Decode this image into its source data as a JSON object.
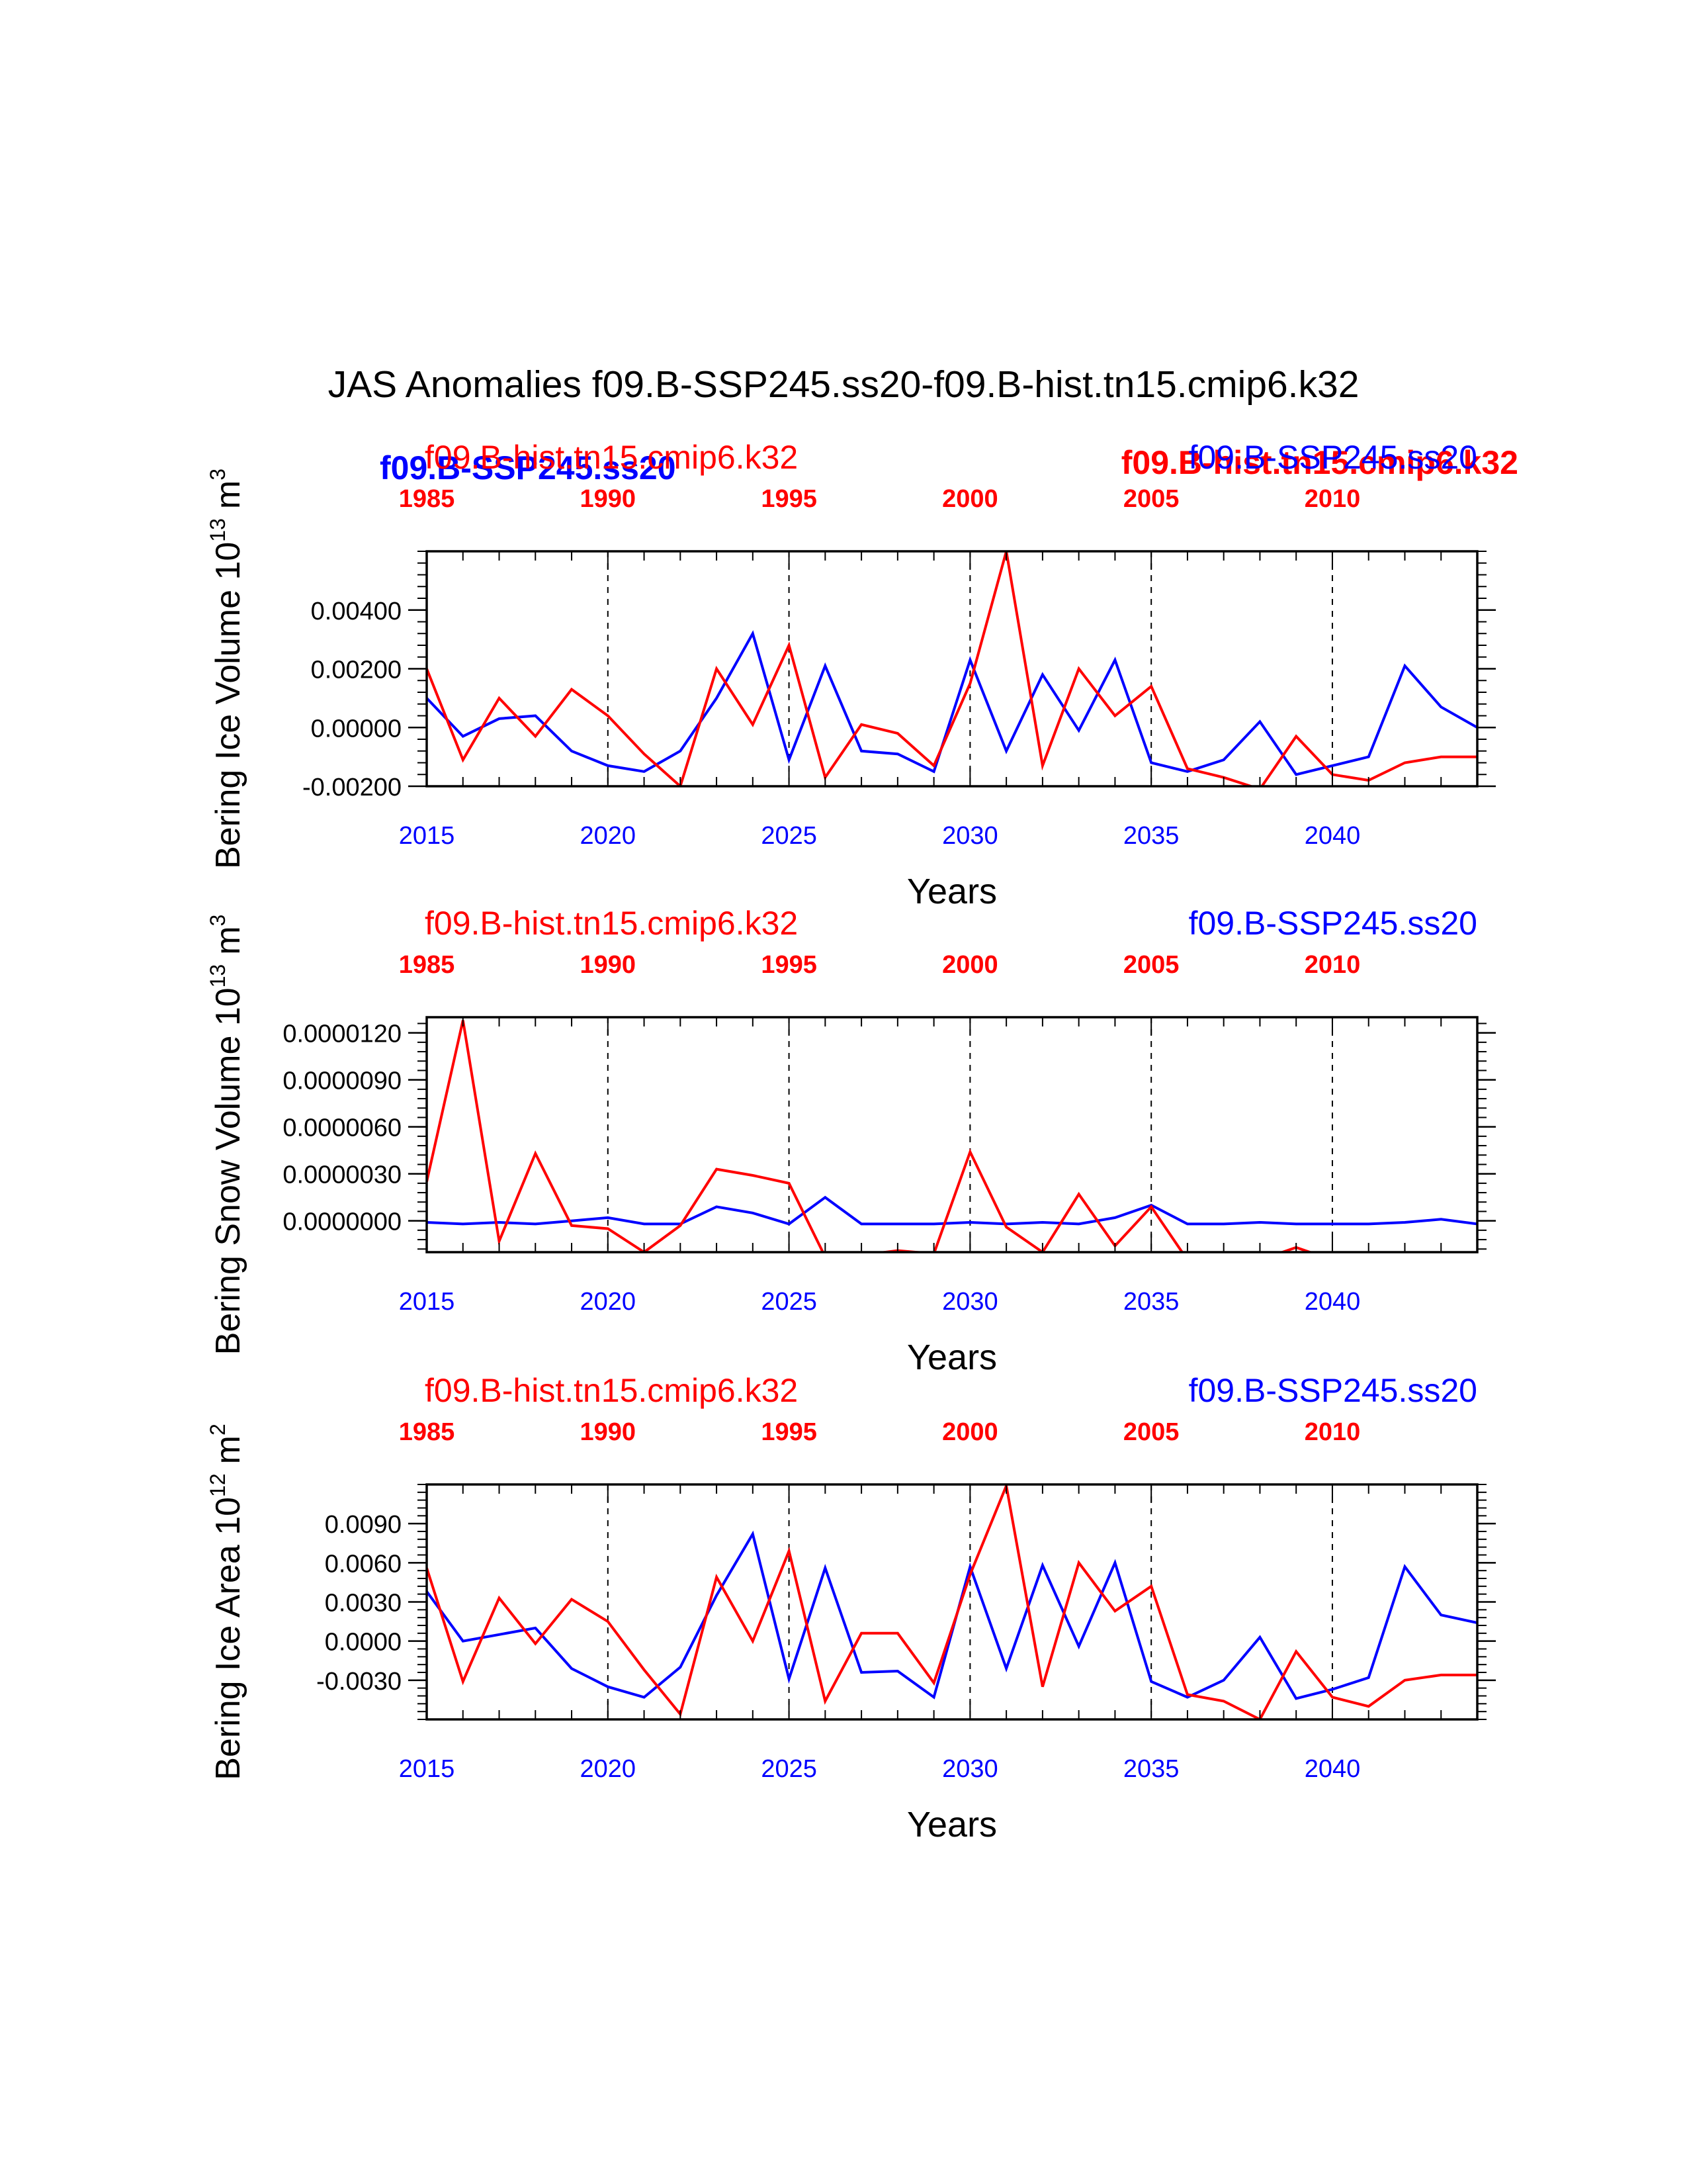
{
  "title": "JAS Anomalies f09.B-SSP245.ss20-f09.B-hist.tn15.cmip6.k32",
  "overlay_labels": {
    "blue_bold": "f09.B-SSP245.ss20",
    "red_bold": "f09.B-hist.tn15.cmip6.k32"
  },
  "colors": {
    "ssp": "#0000ff",
    "hist": "#ff0000",
    "axis": "#000000"
  },
  "chart_data": [
    {
      "type": "line",
      "ylabel_main": "Bering Ice Volume 10",
      "ylabel_exp": "13",
      "ylabel_unit": "m",
      "ylabel_unit_exp": "3",
      "xlabel": "Years",
      "xlim": [
        2015,
        2044
      ],
      "ylim": [
        -0.002,
        0.006
      ],
      "yticks": [
        -0.002,
        0.0,
        0.002,
        0.004
      ],
      "ytick_labels": [
        "-0.00200",
        "0.00000",
        "0.00200",
        "0.00400"
      ],
      "yminor_step": 0.0004,
      "bottom_ticks": [
        2015,
        2020,
        2025,
        2030,
        2035,
        2040
      ],
      "bottom_tick_labels": [
        "2015",
        "2020",
        "2025",
        "2030",
        "2035",
        "2040"
      ],
      "top_tick_labels": [
        "1985",
        "1990",
        "1995",
        "2000",
        "2005",
        "2010"
      ],
      "top_series_label": "f09.B-hist.tn15.cmip6.k32",
      "right_series_label": "f09.B-SSP245.ss20",
      "series": [
        {
          "name": "f09.B-SSP245.ss20",
          "color": "#0000ff",
          "x": [
            2015,
            2016,
            2017,
            2018,
            2019,
            2020,
            2021,
            2022,
            2023,
            2024,
            2025,
            2026,
            2027,
            2028,
            2029,
            2030,
            2031,
            2032,
            2033,
            2034,
            2035,
            2036,
            2037,
            2038,
            2039,
            2040,
            2041,
            2042,
            2043,
            2044
          ],
          "values": [
            0.001,
            -0.0003,
            0.0003,
            0.0004,
            -0.0008,
            -0.0013,
            -0.0015,
            -0.0008,
            0.001,
            0.0032,
            -0.0011,
            0.0021,
            -0.0008,
            -0.0009,
            -0.0015,
            0.0023,
            -0.0008,
            0.0018,
            -0.0001,
            0.0023,
            -0.0012,
            -0.0015,
            -0.0011,
            0.0002,
            -0.0016,
            -0.0013,
            -0.001,
            0.0021,
            0.0007,
            0.0
          ]
        },
        {
          "name": "f09.B-hist.tn15.cmip6.k32",
          "color": "#ff0000",
          "x": [
            2015,
            2016,
            2017,
            2018,
            2019,
            2020,
            2021,
            2022,
            2023,
            2024,
            2025,
            2026,
            2027,
            2028,
            2029,
            2030,
            2031,
            2032,
            2033,
            2034,
            2035,
            2036,
            2037,
            2038,
            2039,
            2040,
            2041,
            2042,
            2043,
            2044
          ],
          "values": [
            0.002,
            -0.0011,
            0.001,
            -0.0003,
            0.0013,
            0.0004,
            -0.0009,
            -0.002,
            0.002,
            0.0001,
            0.0028,
            -0.0017,
            0.0001,
            -0.0002,
            -0.0013,
            0.0015,
            0.006,
            -0.0013,
            0.002,
            0.0004,
            0.0014,
            -0.0014,
            -0.0017,
            -0.0021,
            -0.0003,
            -0.0016,
            -0.0018,
            -0.0012,
            -0.001,
            -0.001
          ]
        }
      ]
    },
    {
      "type": "line",
      "ylabel_main": "Bering Snow Volume 10",
      "ylabel_exp": "13",
      "ylabel_unit": "m",
      "ylabel_unit_exp": "3",
      "xlabel": "Years",
      "xlim": [
        2015,
        2044
      ],
      "ylim": [
        -2e-06,
        1.3e-05
      ],
      "yticks": [
        0.0,
        3e-06,
        6e-06,
        9e-06,
        1.2e-05
      ],
      "ytick_labels": [
        "0.0000000",
        "0.0000030",
        "0.0000060",
        "0.0000090",
        "0.0000120"
      ],
      "yminor_step": 6e-07,
      "bottom_ticks": [
        2015,
        2020,
        2025,
        2030,
        2035,
        2040
      ],
      "bottom_tick_labels": [
        "2015",
        "2020",
        "2025",
        "2030",
        "2035",
        "2040"
      ],
      "top_tick_labels": [
        "1985",
        "1990",
        "1995",
        "2000",
        "2005",
        "2010"
      ],
      "top_series_label": "f09.B-hist.tn15.cmip6.k32",
      "right_series_label": "f09.B-SSP245.ss20",
      "series": [
        {
          "name": "f09.B-SSP245.ss20",
          "color": "#0000ff",
          "x": [
            2015,
            2016,
            2017,
            2018,
            2019,
            2020,
            2021,
            2022,
            2023,
            2024,
            2025,
            2026,
            2027,
            2028,
            2029,
            2030,
            2031,
            2032,
            2033,
            2034,
            2035,
            2036,
            2037,
            2038,
            2039,
            2040,
            2041,
            2042,
            2043,
            2044
          ],
          "values": [
            -1e-07,
            -2e-07,
            -1e-07,
            -2e-07,
            0.0,
            2e-07,
            -2e-07,
            -2e-07,
            9e-07,
            5e-07,
            -2e-07,
            1.5e-06,
            -2e-07,
            -2e-07,
            -2e-07,
            -1e-07,
            -2e-07,
            -1e-07,
            -2e-07,
            2e-07,
            1e-06,
            -2e-07,
            -2e-07,
            -1e-07,
            -2e-07,
            -2e-07,
            -2e-07,
            -1e-07,
            1e-07,
            -2e-07
          ]
        },
        {
          "name": "f09.B-hist.tn15.cmip6.k32",
          "color": "#ff0000",
          "x": [
            2015,
            2016,
            2017,
            2018,
            2019,
            2020,
            2021,
            2022,
            2023,
            2024,
            2025,
            2026,
            2027,
            2028,
            2029,
            2030,
            2031,
            2032,
            2033,
            2034,
            2035,
            2036,
            2037,
            2038,
            2039,
            2040,
            2041,
            2042,
            2043,
            2044
          ],
          "values": [
            2.5e-06,
            1.28e-05,
            -1.3e-06,
            4.3e-06,
            -3e-07,
            -5e-07,
            -2e-06,
            -3e-07,
            3.3e-06,
            2.9e-06,
            2.4e-06,
            -2.3e-06,
            -2.2e-06,
            -1.9e-06,
            -2.1e-06,
            4.4e-06,
            -4e-07,
            -2e-06,
            1.7e-06,
            -1.6e-06,
            9e-07,
            -2.5e-06,
            -2.5e-06,
            -2.5e-06,
            -1.7e-06,
            -2.5e-06,
            -2.5e-06,
            -2.3e-06,
            -2.5e-06,
            -2.5e-06
          ]
        }
      ]
    },
    {
      "type": "line",
      "ylabel_main": "Bering Ice Area 10",
      "ylabel_exp": "12",
      "ylabel_unit": "m",
      "ylabel_unit_exp": "2",
      "xlabel": "Years",
      "xlim": [
        2015,
        2044
      ],
      "ylim": [
        -0.006,
        0.012
      ],
      "yticks": [
        -0.003,
        0.0,
        0.003,
        0.006,
        0.009
      ],
      "ytick_labels": [
        "-0.0030",
        "0.0000",
        "0.0030",
        "0.0060",
        "0.0090"
      ],
      "yminor_step": 0.0006,
      "bottom_ticks": [
        2015,
        2020,
        2025,
        2030,
        2035,
        2040
      ],
      "bottom_tick_labels": [
        "2015",
        "2020",
        "2025",
        "2030",
        "2035",
        "2040"
      ],
      "top_tick_labels": [
        "1985",
        "1990",
        "1995",
        "2000",
        "2005",
        "2010"
      ],
      "top_series_label": "f09.B-hist.tn15.cmip6.k32",
      "right_series_label": "f09.B-SSP245.ss20",
      "series": [
        {
          "name": "f09.B-SSP245.ss20",
          "color": "#0000ff",
          "x": [
            2015,
            2016,
            2017,
            2018,
            2019,
            2020,
            2021,
            2022,
            2023,
            2024,
            2025,
            2026,
            2027,
            2028,
            2029,
            2030,
            2031,
            2032,
            2033,
            2034,
            2035,
            2036,
            2037,
            2038,
            2039,
            2040,
            2041,
            2042,
            2043,
            2044
          ],
          "values": [
            0.0038,
            0.0,
            0.0005,
            0.001,
            -0.0021,
            -0.0035,
            -0.0043,
            -0.002,
            0.0035,
            0.0082,
            -0.0029,
            0.0056,
            -0.0024,
            -0.0023,
            -0.0043,
            0.0057,
            -0.0021,
            0.0058,
            -0.0004,
            0.006,
            -0.0031,
            -0.0043,
            -0.003,
            0.0003,
            -0.0044,
            -0.0037,
            -0.0028,
            0.0057,
            0.002,
            0.0014
          ]
        },
        {
          "name": "f09.B-hist.tn15.cmip6.k32",
          "color": "#ff0000",
          "x": [
            2015,
            2016,
            2017,
            2018,
            2019,
            2020,
            2021,
            2022,
            2023,
            2024,
            2025,
            2026,
            2027,
            2028,
            2029,
            2030,
            2031,
            2032,
            2033,
            2034,
            2035,
            2036,
            2037,
            2038,
            2039,
            2040,
            2041,
            2042,
            2043,
            2044
          ],
          "values": [
            0.0056,
            -0.0031,
            0.0033,
            -0.0002,
            0.0032,
            0.0015,
            -0.0022,
            -0.0056,
            0.0049,
            0.0,
            0.0069,
            -0.0046,
            0.0006,
            0.0006,
            -0.0032,
            0.0051,
            0.0119,
            -0.0035,
            0.006,
            0.0023,
            0.0042,
            -0.0041,
            -0.0046,
            -0.006,
            -0.0008,
            -0.0043,
            -0.005,
            -0.003,
            -0.0026,
            -0.0026
          ]
        }
      ]
    }
  ]
}
